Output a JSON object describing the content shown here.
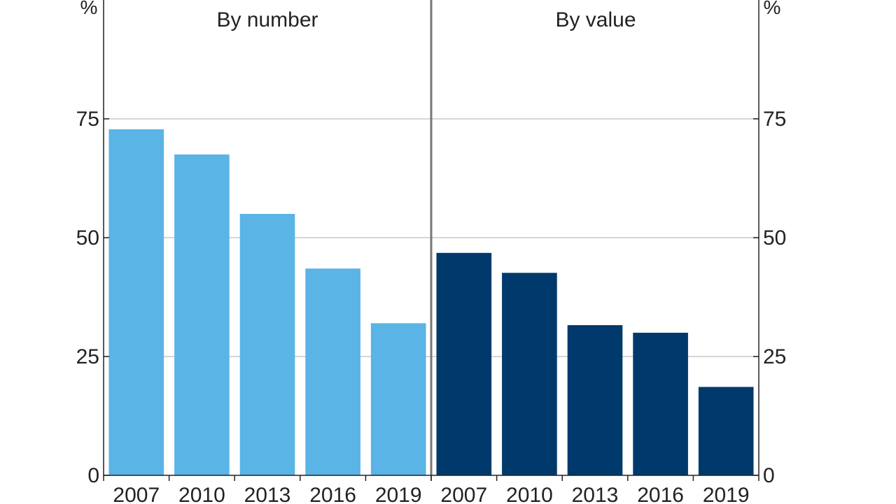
{
  "chart_data": {
    "type": "bar",
    "unit_left": "%",
    "unit_right": "%",
    "ylim": [
      0,
      100
    ],
    "yticks": [
      "0",
      "25",
      "50",
      "75"
    ],
    "categories": [
      "2007",
      "2010",
      "2013",
      "2016",
      "2019"
    ],
    "grid": true,
    "panels": [
      {
        "title": "By number",
        "color": "#5ab4e5",
        "values": [
          72.8,
          67.5,
          55.0,
          43.5,
          32.0
        ]
      },
      {
        "title": "By value",
        "color": "#003a6c",
        "values": [
          46.8,
          42.6,
          31.6,
          30.0,
          18.6
        ]
      }
    ]
  }
}
